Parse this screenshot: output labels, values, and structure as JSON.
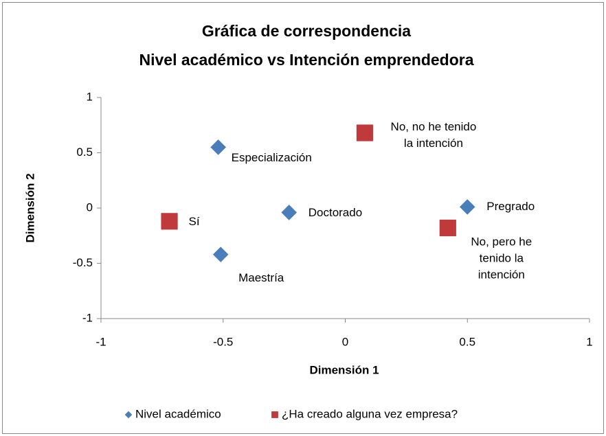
{
  "chart_data": {
    "type": "scatter",
    "title": [
      "Gráfica de correspondencia",
      "Nivel académico vs Intención emprendedora"
    ],
    "xlabel": "Dimensión 1",
    "ylabel": "Dimensión 2",
    "xlim": [
      -1,
      1
    ],
    "xticks": [
      -1,
      -0.5,
      0,
      0.5,
      1
    ],
    "ylim": [
      -1,
      1
    ],
    "yticks": [
      -1,
      -0.5,
      0,
      0.5,
      1
    ],
    "legend": "bottom",
    "series": [
      {
        "name": "Nivel académico",
        "color": "#4a7ebb",
        "marker": "diamond",
        "x": [
          -0.52,
          -0.23,
          0.5,
          -0.51
        ],
        "values": [
          0.55,
          -0.04,
          0.01,
          -0.42
        ],
        "labels": [
          [
            "Especialización"
          ],
          [
            "Doctorado"
          ],
          [
            "Pregrado"
          ],
          [
            "Maestría"
          ]
        ]
      },
      {
        "name": "¿Ha creado alguna vez empresa?",
        "color": "#c0393b",
        "marker": "square",
        "x": [
          -0.72,
          0.08,
          0.42
        ],
        "values": [
          -0.12,
          0.68,
          -0.18
        ],
        "labels": [
          [
            "Sí"
          ],
          [
            "No, no he tenido",
            "la intención"
          ],
          [
            "No, pero he",
            "tenido la",
            "intención"
          ]
        ]
      }
    ]
  }
}
